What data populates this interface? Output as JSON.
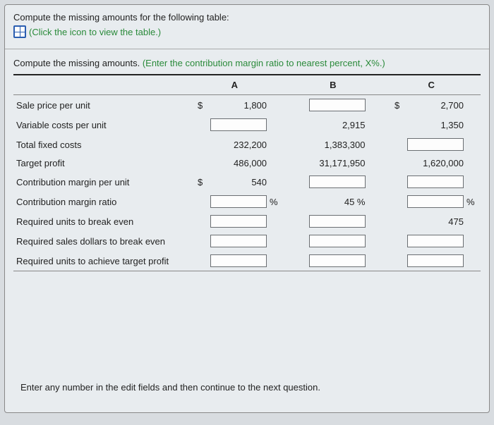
{
  "intro": {
    "line1": "Compute the missing amounts for the following table:",
    "link_text": "(Click the icon to view the table.)"
  },
  "instruction": {
    "prefix": "Compute the missing amounts. ",
    "hint": "(Enter the contribution margin ratio to nearest percent, X%.)"
  },
  "columns": {
    "a": "A",
    "b": "B",
    "c": "C"
  },
  "rows": {
    "sale_price": {
      "label": "Sale price per unit",
      "a": {
        "currency": "$",
        "value": "1,800",
        "is_input": false
      },
      "b": {
        "currency": "",
        "value": "",
        "is_input": true
      },
      "c": {
        "currency": "$",
        "value": "2,700",
        "is_input": false
      }
    },
    "var_costs": {
      "label": "Variable costs per unit",
      "a": {
        "currency": "",
        "value": "",
        "is_input": true
      },
      "b": {
        "currency": "",
        "value": "2,915",
        "is_input": false
      },
      "c": {
        "currency": "",
        "value": "1,350",
        "is_input": false
      }
    },
    "fixed_costs": {
      "label": "Total fixed costs",
      "a": {
        "currency": "",
        "value": "232,200",
        "is_input": false
      },
      "b": {
        "currency": "",
        "value": "1,383,300",
        "is_input": false
      },
      "c": {
        "currency": "",
        "value": "",
        "is_input": true
      }
    },
    "target_profit": {
      "label": "Target profit",
      "a": {
        "currency": "",
        "value": "486,000",
        "is_input": false
      },
      "b": {
        "currency": "",
        "value": "31,171,950",
        "is_input": false
      },
      "c": {
        "currency": "",
        "value": "1,620,000",
        "is_input": false
      }
    },
    "cm_unit": {
      "label": "Contribution margin per unit",
      "a": {
        "currency": "$",
        "value": "540",
        "is_input": false
      },
      "b": {
        "currency": "",
        "value": "",
        "is_input": true
      },
      "c": {
        "currency": "",
        "value": "",
        "is_input": true
      }
    },
    "cm_ratio": {
      "label": "Contribution margin ratio",
      "a": {
        "value": "",
        "is_input": true,
        "suffix": "%"
      },
      "b": {
        "value": "45 %",
        "is_input": false,
        "suffix": ""
      },
      "c": {
        "value": "",
        "is_input": true,
        "suffix": "%"
      }
    },
    "units_be": {
      "label": "Required units to break even",
      "a": {
        "value": "",
        "is_input": true
      },
      "b": {
        "value": "",
        "is_input": true
      },
      "c": {
        "value": "475",
        "is_input": false
      }
    },
    "dollars_be": {
      "label": "Required sales dollars to break even",
      "a": {
        "value": "",
        "is_input": true
      },
      "b": {
        "value": "",
        "is_input": true
      },
      "c": {
        "value": "",
        "is_input": true
      }
    },
    "units_target": {
      "label": "Required units to achieve target profit",
      "a": {
        "value": "",
        "is_input": true
      },
      "b": {
        "value": "",
        "is_input": true
      },
      "c": {
        "value": "",
        "is_input": true
      }
    }
  },
  "footer": "Enter any number in the edit fields and then continue to the next question."
}
